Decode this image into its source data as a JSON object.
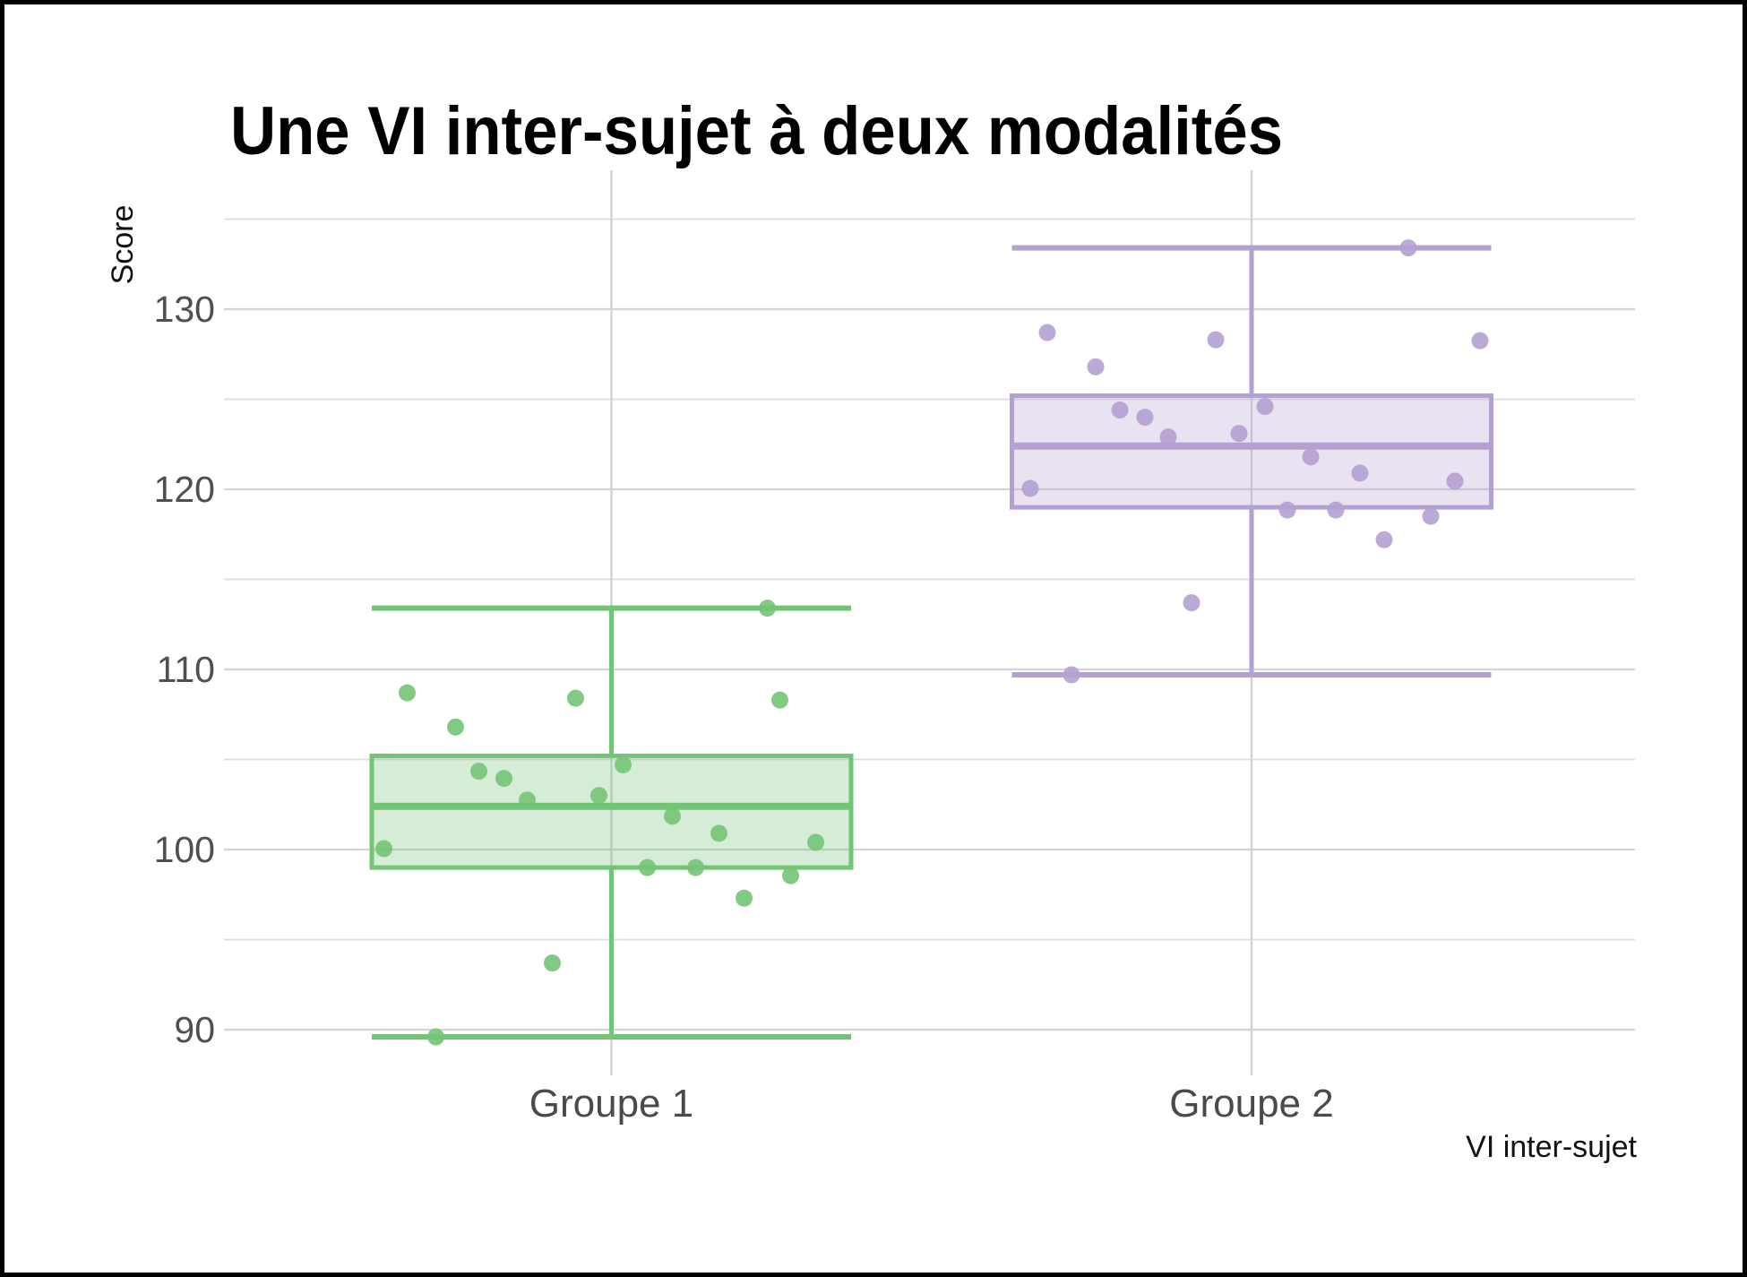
{
  "title": "Une VI inter-sujet à deux modalités",
  "chart_data": {
    "type": "boxplot",
    "title": "Une VI inter-sujet à deux modalités",
    "ylabel": "Score",
    "xlabel": "VI inter-sujet",
    "categories": [
      "Groupe 1",
      "Groupe 2"
    ],
    "ylim": [
      87.5,
      137.7
    ],
    "y_major_ticks": [
      90,
      100,
      110,
      120,
      130
    ],
    "y_minor_ticks": [
      95,
      105,
      115,
      125,
      135
    ],
    "grid": true,
    "legend": false,
    "style": "jittered points over semi-transparent boxes, whisker caps as wide as box",
    "groups": [
      {
        "label": "Groupe 1",
        "color": "#74c476",
        "box": {
          "whisker_min": 89.6,
          "q1": 99.0,
          "median": 102.4,
          "q3": 105.2,
          "whisker_max": 113.4
        },
        "points": [
          {
            "dx": 174,
            "value": 113.4
          },
          {
            "dx": -228,
            "value": 108.7
          },
          {
            "dx": -40,
            "value": 108.4
          },
          {
            "dx": 188,
            "value": 108.3
          },
          {
            "dx": -174,
            "value": 106.8
          },
          {
            "dx": 13,
            "value": 104.7
          },
          {
            "dx": -148,
            "value": 104.35
          },
          {
            "dx": -120,
            "value": 103.95
          },
          {
            "dx": -14,
            "value": 103.0
          },
          {
            "dx": -94,
            "value": 102.75
          },
          {
            "dx": 68,
            "value": 101.85
          },
          {
            "dx": 120,
            "value": 100.9
          },
          {
            "dx": 228,
            "value": 100.4
          },
          {
            "dx": -254,
            "value": 100.05
          },
          {
            "dx": 40,
            "value": 99.0
          },
          {
            "dx": 94,
            "value": 99.0
          },
          {
            "dx": 200,
            "value": 98.55
          },
          {
            "dx": 148,
            "value": 97.3
          },
          {
            "dx": -66,
            "value": 93.7
          },
          {
            "dx": -196,
            "value": 89.6
          }
        ]
      },
      {
        "label": "Groupe 2",
        "color": "#b4a0d1",
        "box": {
          "whisker_min": 109.7,
          "q1": 119.0,
          "median": 122.4,
          "q3": 125.2,
          "whisker_max": 133.4
        },
        "points": [
          {
            "dx": 175,
            "value": 133.4
          },
          {
            "dx": -228,
            "value": 128.7
          },
          {
            "dx": -40,
            "value": 128.3
          },
          {
            "dx": 255,
            "value": 128.25
          },
          {
            "dx": -174,
            "value": 126.8
          },
          {
            "dx": 15,
            "value": 124.6
          },
          {
            "dx": -147,
            "value": 124.4
          },
          {
            "dx": -119,
            "value": 124.0
          },
          {
            "dx": -14,
            "value": 123.1
          },
          {
            "dx": -93,
            "value": 122.9
          },
          {
            "dx": 66,
            "value": 121.8
          },
          {
            "dx": 121,
            "value": 120.9
          },
          {
            "dx": 227,
            "value": 120.45
          },
          {
            "dx": -247,
            "value": 120.05
          },
          {
            "dx": 40,
            "value": 118.85
          },
          {
            "dx": 94,
            "value": 118.85
          },
          {
            "dx": 200,
            "value": 118.5
          },
          {
            "dx": 148,
            "value": 117.2
          },
          {
            "dx": -67,
            "value": 113.7
          },
          {
            "dx": -201,
            "value": 109.7
          }
        ]
      }
    ]
  },
  "colors": {
    "background": "#ffffff",
    "frame": "#000000",
    "grid_major": "#d4d4d4",
    "grid_minor": "#dddddd",
    "grid_vertical": "#cfcfcf",
    "tick_text": "#4f4f4f",
    "group_text": "#4a4a4a",
    "axis_title_text": "#111111",
    "green": "#74c476",
    "purple": "#b4a0d1"
  }
}
